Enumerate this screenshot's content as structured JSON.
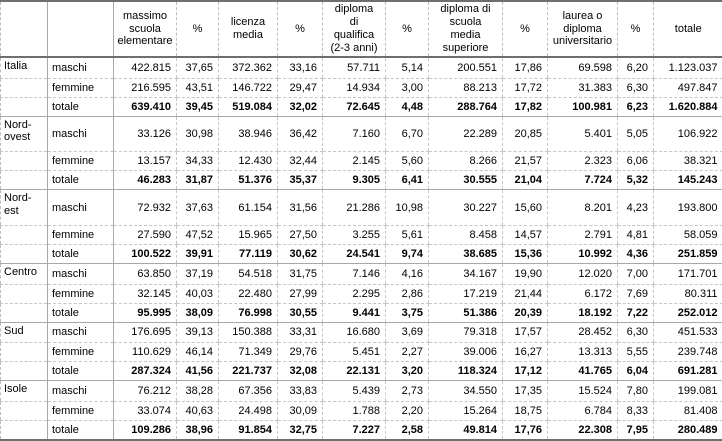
{
  "colors": {
    "background": "#ffffff",
    "text": "#000000",
    "border_heavy": "#6e6e6e",
    "border_solid": "#a8a8a8",
    "border_dashed": "#c6c6c6"
  },
  "chart_data": {
    "type": "table",
    "columns": [
      "",
      "",
      "massimo\nscuola\nelementare",
      "%",
      "licenza\nmedia",
      "%",
      "diploma\ndi\nqualifica\n(2-3 anni)",
      "%",
      "diploma di\nscuola\nmedia\nsuperiore",
      "%",
      "laurea o\ndiploma\nuniversitario",
      "%",
      "totale"
    ],
    "groups": [
      {
        "region": "Italia",
        "rows": [
          {
            "label": "maschi",
            "values": [
              "422.815",
              "37,65",
              "372.362",
              "33,16",
              "57.711",
              "5,14",
              "200.551",
              "17,86",
              "69.598",
              "6,20",
              "1.123.037"
            ]
          },
          {
            "label": "femmine",
            "values": [
              "216.595",
              "43,51",
              "146.722",
              "29,47",
              "14.934",
              "3,00",
              "88.213",
              "17,72",
              "31.383",
              "6,30",
              "497.847"
            ]
          },
          {
            "label": "totale",
            "values": [
              "639.410",
              "39,45",
              "519.084",
              "32,02",
              "72.645",
              "4,48",
              "288.764",
              "17,82",
              "100.981",
              "6,23",
              "1.620.884"
            ]
          }
        ]
      },
      {
        "region": "Nord-\novest",
        "rows": [
          {
            "label": "maschi",
            "values": [
              "33.126",
              "30,98",
              "38.946",
              "36,42",
              "7.160",
              "6,70",
              "22.289",
              "20,85",
              "5.401",
              "5,05",
              "106.922"
            ]
          },
          {
            "label": "femmine",
            "values": [
              "13.157",
              "34,33",
              "12.430",
              "32,44",
              "2.145",
              "5,60",
              "8.266",
              "21,57",
              "2.323",
              "6,06",
              "38.321"
            ]
          },
          {
            "label": "totale",
            "values": [
              "46.283",
              "31,87",
              "51.376",
              "35,37",
              "9.305",
              "6,41",
              "30.555",
              "21,04",
              "7.724",
              "5,32",
              "145.243"
            ]
          }
        ]
      },
      {
        "region": "Nord-\nest",
        "rows": [
          {
            "label": "maschi",
            "values": [
              "72.932",
              "37,63",
              "61.154",
              "31,56",
              "21.286",
              "10,98",
              "30.227",
              "15,60",
              "8.201",
              "4,23",
              "193.800"
            ]
          },
          {
            "label": "femmine",
            "values": [
              "27.590",
              "47,52",
              "15.965",
              "27,50",
              "3.255",
              "5,61",
              "8.458",
              "14,57",
              "2.791",
              "4,81",
              "58.059"
            ]
          },
          {
            "label": "totale",
            "values": [
              "100.522",
              "39,91",
              "77.119",
              "30,62",
              "24.541",
              "9,74",
              "38.685",
              "15,36",
              "10.992",
              "4,36",
              "251.859"
            ]
          }
        ]
      },
      {
        "region": "Centro",
        "rows": [
          {
            "label": "maschi",
            "values": [
              "63.850",
              "37,19",
              "54.518",
              "31,75",
              "7.146",
              "4,16",
              "34.167",
              "19,90",
              "12.020",
              "7,00",
              "171.701"
            ]
          },
          {
            "label": "femmine",
            "values": [
              "32.145",
              "40,03",
              "22.480",
              "27,99",
              "2.295",
              "2,86",
              "17.219",
              "21,44",
              "6.172",
              "7,69",
              "80.311"
            ]
          },
          {
            "label": "totale",
            "values": [
              "95.995",
              "38,09",
              "76.998",
              "30,55",
              "9.441",
              "3,75",
              "51.386",
              "20,39",
              "18.192",
              "7,22",
              "252.012"
            ]
          }
        ]
      },
      {
        "region": "Sud",
        "rows": [
          {
            "label": "maschi",
            "values": [
              "176.695",
              "39,13",
              "150.388",
              "33,31",
              "16.680",
              "3,69",
              "79.318",
              "17,57",
              "28.452",
              "6,30",
              "451.533"
            ]
          },
          {
            "label": "femmine",
            "values": [
              "110.629",
              "46,14",
              "71.349",
              "29,76",
              "5.451",
              "2,27",
              "39.006",
              "16,27",
              "13.313",
              "5,55",
              "239.748"
            ]
          },
          {
            "label": "totale",
            "values": [
              "287.324",
              "41,56",
              "221.737",
              "32,08",
              "22.131",
              "3,20",
              "118.324",
              "17,12",
              "41.765",
              "6,04",
              "691.281"
            ]
          }
        ]
      },
      {
        "region": "Isole",
        "rows": [
          {
            "label": "maschi",
            "values": [
              "76.212",
              "38,28",
              "67.356",
              "33,83",
              "5.439",
              "2,73",
              "34.550",
              "17,35",
              "15.524",
              "7,80",
              "199.081"
            ]
          },
          {
            "label": "femmine",
            "values": [
              "33.074",
              "40,63",
              "24.498",
              "30,09",
              "1.788",
              "2,20",
              "15.264",
              "18,75",
              "6.784",
              "8,33",
              "81.408"
            ]
          },
          {
            "label": "totale",
            "values": [
              "109.286",
              "38,96",
              "91.854",
              "32,75",
              "7.227",
              "2,58",
              "49.814",
              "17,76",
              "22.308",
              "7,95",
              "280.489"
            ]
          }
        ]
      }
    ]
  }
}
